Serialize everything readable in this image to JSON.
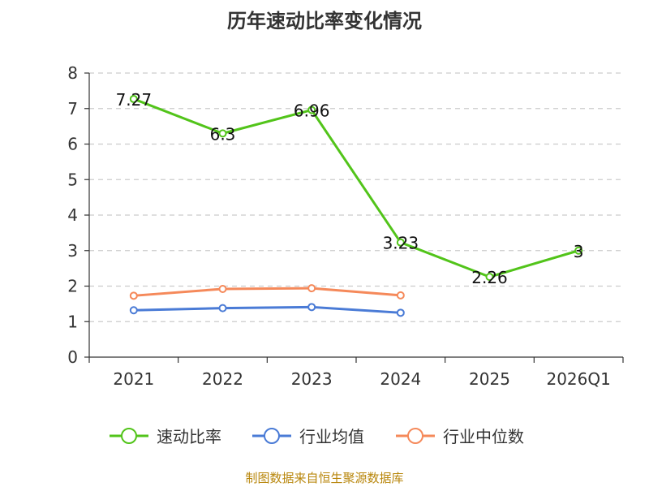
{
  "chart_data": {
    "type": "line",
    "title": "历年速动比率变化情况",
    "categories": [
      "2021",
      "2022",
      "2023",
      "2024",
      "2025",
      "2026Q1"
    ],
    "yticks": [
      "0",
      "1",
      "2",
      "3",
      "4",
      "5",
      "6",
      "7",
      "8"
    ],
    "ylim": [
      0,
      8
    ],
    "grid": true,
    "legend_position": "bottom",
    "series": [
      {
        "name": "速动比率",
        "color": "#52c41a",
        "values": [
          7.27,
          6.3,
          6.96,
          3.23,
          2.26,
          3
        ],
        "labels": [
          "7.27",
          "6.3",
          "6.96",
          "3.23",
          "2.26",
          "3"
        ]
      },
      {
        "name": "行业均值",
        "color": "#4a7bd6",
        "values": [
          1.32,
          1.38,
          1.41,
          1.25,
          null,
          null
        ]
      },
      {
        "name": "行业中位数",
        "color": "#f5895a",
        "values": [
          1.73,
          1.92,
          1.94,
          1.74,
          null,
          null
        ]
      }
    ]
  },
  "source": "制图数据来自恒生聚源数据库"
}
